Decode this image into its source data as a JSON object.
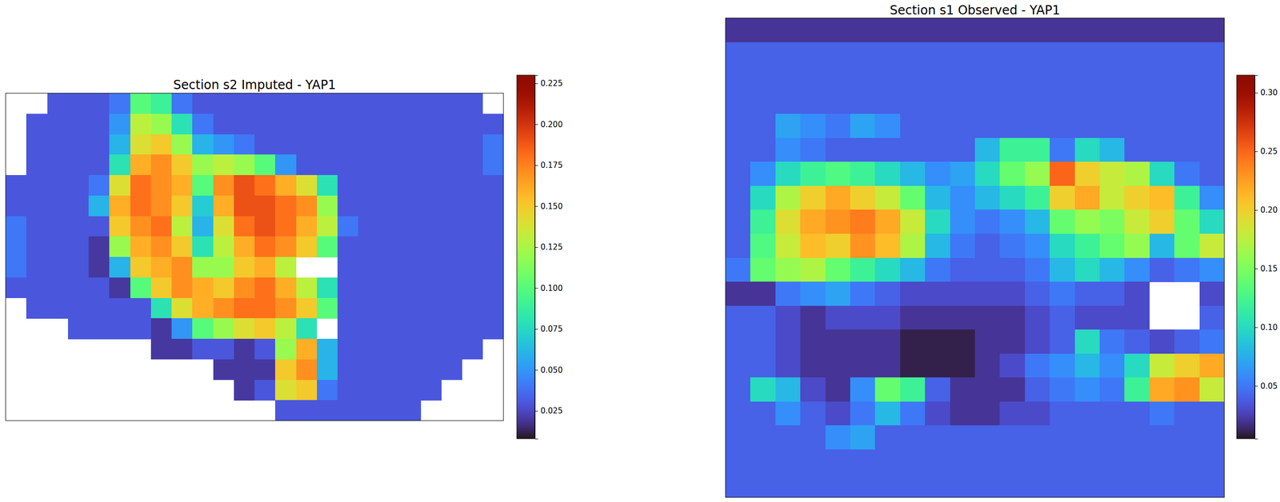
{
  "chart_data": [
    {
      "type": "heatmap",
      "title": "Section s2 Imputed - YAP1",
      "tick_labels": false,
      "color_range": [
        0.008,
        0.23
      ],
      "color_ticks": [
        0.025,
        {
          "value": 0.05,
          "label": "0.050"
        },
        0.075,
        {
          "value": 0.1,
          "label": "0.100"
        },
        0.125,
        {
          "value": 0.15,
          "label": "0.150"
        },
        0.175,
        {
          "value": 0.2,
          "label": "0.200"
        },
        0.225
      ],
      "cells": [
        [
          null,
          null,
          0.03,
          0.03,
          0.03,
          0.04,
          0.1,
          0.09,
          0.04,
          0.03,
          0.03,
          0.03,
          0.03,
          0.03,
          0.03,
          0.03,
          0.03,
          0.03,
          0.03,
          0.03,
          0.03,
          0.03,
          0.03,
          null
        ],
        [
          null,
          0.03,
          0.03,
          0.03,
          0.03,
          0.05,
          0.13,
          0.12,
          0.08,
          0.04,
          0.03,
          0.03,
          0.03,
          0.03,
          0.03,
          0.03,
          0.03,
          0.03,
          0.03,
          0.03,
          0.03,
          0.03,
          0.03,
          0.03
        ],
        [
          null,
          0.03,
          0.03,
          0.03,
          0.03,
          0.06,
          0.14,
          0.15,
          0.12,
          0.06,
          0.05,
          0.04,
          0.03,
          0.03,
          0.03,
          0.03,
          0.03,
          0.03,
          0.03,
          0.03,
          0.03,
          0.03,
          0.03,
          0.04
        ],
        [
          null,
          0.03,
          0.03,
          0.03,
          0.03,
          0.08,
          0.16,
          0.17,
          0.15,
          0.12,
          0.13,
          0.12,
          0.1,
          0.05,
          0.03,
          0.03,
          0.03,
          0.03,
          0.03,
          0.03,
          0.03,
          0.03,
          0.03,
          0.04
        ],
        [
          0.03,
          0.03,
          0.03,
          0.03,
          0.04,
          0.14,
          0.18,
          0.17,
          0.16,
          0.1,
          0.17,
          0.19,
          0.18,
          0.16,
          0.14,
          0.08,
          0.03,
          0.03,
          0.03,
          0.03,
          0.03,
          0.03,
          0.03,
          0.03
        ],
        [
          0.03,
          0.03,
          0.03,
          0.03,
          0.06,
          0.16,
          0.18,
          0.17,
          0.15,
          0.07,
          0.16,
          0.19,
          0.19,
          0.18,
          0.17,
          0.12,
          0.03,
          0.03,
          0.03,
          0.03,
          0.03,
          0.03,
          0.03,
          0.03
        ],
        [
          0.04,
          0.03,
          0.03,
          0.03,
          0.03,
          0.15,
          0.17,
          0.18,
          0.13,
          0.06,
          0.14,
          0.18,
          0.19,
          0.18,
          0.16,
          0.13,
          0.04,
          0.03,
          0.03,
          0.03,
          0.03,
          0.03,
          0.03,
          0.03
        ],
        [
          0.04,
          0.03,
          0.03,
          0.03,
          0.02,
          0.12,
          0.16,
          0.17,
          0.15,
          0.08,
          0.13,
          0.16,
          0.18,
          0.17,
          0.15,
          0.1,
          0.03,
          0.03,
          0.03,
          0.03,
          0.03,
          0.03,
          0.03,
          0.03
        ],
        [
          0.04,
          0.03,
          0.03,
          0.03,
          0.02,
          0.06,
          0.15,
          0.16,
          0.17,
          0.12,
          0.12,
          0.15,
          0.16,
          0.13,
          null,
          null,
          0.03,
          0.03,
          0.03,
          0.03,
          0.03,
          0.03,
          0.03,
          0.03
        ],
        [
          0.03,
          0.03,
          0.03,
          0.03,
          0.03,
          0.02,
          0.1,
          0.15,
          0.17,
          0.16,
          0.15,
          0.17,
          0.18,
          0.16,
          0.13,
          0.08,
          0.03,
          0.03,
          0.03,
          0.03,
          0.03,
          0.03,
          0.03,
          0.03
        ],
        [
          null,
          0.03,
          0.03,
          0.03,
          0.03,
          0.03,
          0.03,
          0.08,
          0.14,
          0.16,
          0.17,
          0.18,
          0.18,
          0.17,
          0.15,
          0.1,
          0.03,
          0.03,
          0.03,
          0.03,
          0.03,
          0.03,
          0.03,
          0.03
        ],
        [
          null,
          null,
          null,
          0.03,
          0.03,
          0.03,
          0.03,
          0.02,
          0.05,
          0.1,
          0.12,
          0.14,
          0.15,
          0.13,
          0.08,
          null,
          0.03,
          0.03,
          0.03,
          0.03,
          0.03,
          0.03,
          0.03,
          0.03
        ],
        [
          null,
          null,
          null,
          null,
          null,
          null,
          null,
          0.02,
          0.02,
          0.03,
          0.03,
          0.02,
          0.03,
          0.12,
          0.16,
          0.06,
          0.03,
          0.03,
          0.03,
          0.03,
          0.03,
          0.03,
          0.03,
          null
        ],
        [
          null,
          null,
          null,
          null,
          null,
          null,
          null,
          null,
          null,
          null,
          0.02,
          0.02,
          0.02,
          0.15,
          0.17,
          0.06,
          0.03,
          0.03,
          0.03,
          0.03,
          0.03,
          0.03,
          null,
          null
        ],
        [
          null,
          null,
          null,
          null,
          null,
          null,
          null,
          null,
          null,
          null,
          null,
          0.02,
          0.03,
          0.14,
          0.15,
          0.04,
          0.03,
          0.03,
          0.03,
          0.03,
          0.03,
          null,
          null,
          null
        ],
        [
          null,
          null,
          null,
          null,
          null,
          null,
          null,
          null,
          null,
          null,
          null,
          null,
          null,
          0.03,
          0.03,
          0.03,
          0.03,
          0.03,
          0.03,
          0.03,
          null,
          null,
          null,
          null
        ]
      ]
    },
    {
      "type": "heatmap",
      "title": "Section s1 Observed - YAP1",
      "tick_labels": false,
      "color_range": [
        0.005,
        0.315
      ],
      "color_ticks": [
        0.05,
        {
          "value": 0.1,
          "label": "0.10"
        },
        0.15,
        {
          "value": 0.2,
          "label": "0.20"
        },
        0.25,
        {
          "value": 0.3,
          "label": "0.30"
        }
      ],
      "cells": [
        [
          0.02,
          0.02,
          0.02,
          0.02,
          0.02,
          0.02,
          0.02,
          0.02,
          0.02,
          0.02,
          0.02,
          0.02,
          0.02,
          0.02,
          0.02,
          0.02,
          0.02,
          0.02,
          0.02,
          0.02
        ],
        [
          0.04,
          0.04,
          0.04,
          0.04,
          0.04,
          0.04,
          0.04,
          0.04,
          0.04,
          0.04,
          0.04,
          0.04,
          0.04,
          0.04,
          0.04,
          0.04,
          0.04,
          0.04,
          0.04,
          0.04
        ],
        [
          0.04,
          0.04,
          0.04,
          0.04,
          0.04,
          0.04,
          0.04,
          0.04,
          0.04,
          0.04,
          0.04,
          0.04,
          0.04,
          0.04,
          0.04,
          0.04,
          0.04,
          0.04,
          0.04,
          0.04
        ],
        [
          0.04,
          0.04,
          0.04,
          0.04,
          0.04,
          0.04,
          0.04,
          0.04,
          0.04,
          0.04,
          0.04,
          0.04,
          0.04,
          0.04,
          0.04,
          0.04,
          0.04,
          0.04,
          0.04,
          0.04
        ],
        [
          0.04,
          0.04,
          0.07,
          0.06,
          0.05,
          0.07,
          0.06,
          0.04,
          0.04,
          0.04,
          0.04,
          0.04,
          0.04,
          0.04,
          0.04,
          0.04,
          0.04,
          0.04,
          0.04,
          0.04
        ],
        [
          0.04,
          0.04,
          0.06,
          0.05,
          0.04,
          0.04,
          0.04,
          0.04,
          0.04,
          0.04,
          0.08,
          0.12,
          0.12,
          0.05,
          0.1,
          0.08,
          0.04,
          0.04,
          0.04,
          0.04
        ],
        [
          0.04,
          0.06,
          0.1,
          0.12,
          0.13,
          0.12,
          0.1,
          0.08,
          0.06,
          0.07,
          0.1,
          0.14,
          0.16,
          0.25,
          0.2,
          0.18,
          0.17,
          0.1,
          0.05,
          0.04
        ],
        [
          0.04,
          0.1,
          0.17,
          0.2,
          0.22,
          0.2,
          0.18,
          0.14,
          0.08,
          0.06,
          0.08,
          0.1,
          0.12,
          0.2,
          0.22,
          0.18,
          0.2,
          0.21,
          0.12,
          0.06
        ],
        [
          0.04,
          0.12,
          0.19,
          0.22,
          0.23,
          0.24,
          0.22,
          0.18,
          0.1,
          0.06,
          0.05,
          0.06,
          0.08,
          0.14,
          0.16,
          0.15,
          0.18,
          0.2,
          0.14,
          0.1
        ],
        [
          0.04,
          0.13,
          0.18,
          0.21,
          0.2,
          0.23,
          0.21,
          0.17,
          0.08,
          0.05,
          0.04,
          0.05,
          0.06,
          0.1,
          0.12,
          0.14,
          0.16,
          0.08,
          0.14,
          0.18
        ],
        [
          0.05,
          0.14,
          0.16,
          0.17,
          0.14,
          0.12,
          0.1,
          0.08,
          0.05,
          0.04,
          0.04,
          0.04,
          0.05,
          0.08,
          0.1,
          0.08,
          0.06,
          0.04,
          0.05,
          0.06
        ],
        [
          0.02,
          0.02,
          0.05,
          0.06,
          0.07,
          0.05,
          0.04,
          0.03,
          0.03,
          0.03,
          0.03,
          0.03,
          0.04,
          0.05,
          0.04,
          0.04,
          0.03,
          null,
          null,
          0.03
        ],
        [
          0.04,
          0.04,
          0.03,
          0.02,
          0.03,
          0.03,
          0.03,
          0.02,
          0.02,
          0.02,
          0.02,
          0.02,
          0.03,
          0.04,
          0.03,
          0.03,
          0.03,
          null,
          null,
          0.04
        ],
        [
          0.04,
          0.04,
          0.03,
          0.02,
          0.02,
          0.02,
          0.02,
          0.01,
          0.01,
          0.01,
          0.02,
          0.02,
          0.03,
          0.04,
          0.1,
          0.05,
          0.04,
          0.03,
          0.04,
          0.05
        ],
        [
          0.04,
          0.04,
          0.03,
          0.02,
          0.02,
          0.02,
          0.02,
          0.01,
          0.01,
          0.01,
          0.02,
          0.03,
          0.05,
          0.06,
          0.08,
          0.06,
          0.1,
          0.18,
          0.2,
          0.22
        ],
        [
          0.04,
          0.1,
          0.08,
          0.03,
          0.02,
          0.06,
          0.14,
          0.12,
          0.04,
          0.02,
          0.02,
          0.02,
          0.04,
          0.05,
          0.06,
          0.05,
          0.12,
          0.22,
          0.23,
          0.18
        ],
        [
          0.04,
          0.04,
          0.06,
          0.04,
          0.03,
          0.05,
          0.08,
          0.05,
          0.03,
          0.02,
          0.02,
          0.03,
          0.03,
          0.04,
          0.04,
          0.04,
          0.04,
          0.05,
          0.04,
          0.04
        ],
        [
          0.04,
          0.04,
          0.04,
          0.04,
          0.06,
          0.07,
          0.04,
          0.04,
          0.04,
          0.04,
          0.04,
          0.04,
          0.04,
          0.04,
          0.04,
          0.04,
          0.04,
          0.04,
          0.04,
          0.04
        ],
        [
          0.04,
          0.04,
          0.04,
          0.04,
          0.04,
          0.04,
          0.04,
          0.04,
          0.04,
          0.04,
          0.04,
          0.04,
          0.04,
          0.04,
          0.04,
          0.04,
          0.04,
          0.04,
          0.04,
          0.04
        ],
        [
          0.04,
          0.04,
          0.04,
          0.04,
          0.04,
          0.04,
          0.04,
          0.04,
          0.04,
          0.04,
          0.04,
          0.04,
          0.04,
          0.04,
          0.04,
          0.04,
          0.04,
          0.04,
          0.04,
          0.04
        ]
      ]
    }
  ]
}
